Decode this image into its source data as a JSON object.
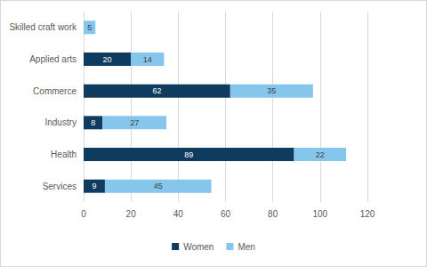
{
  "chart_data": {
    "type": "bar",
    "orientation": "horizontal",
    "stacked": true,
    "data_labels": true,
    "grid": true,
    "legend": "bottom",
    "categories": [
      "Skilled craft work",
      "Applied arts",
      "Commerce",
      "Industry",
      "Health",
      "Services"
    ],
    "series": [
      {
        "name": "Women",
        "color": "#0f3b5f",
        "values": [
          null,
          20,
          62,
          8,
          89,
          9
        ]
      },
      {
        "name": "Men",
        "color": "#86c6ec",
        "values": [
          5,
          14,
          35,
          27,
          22,
          45
        ]
      }
    ],
    "xlim": [
      0,
      120
    ],
    "xticks": [
      0,
      20,
      40,
      60,
      80,
      100,
      120
    ]
  }
}
